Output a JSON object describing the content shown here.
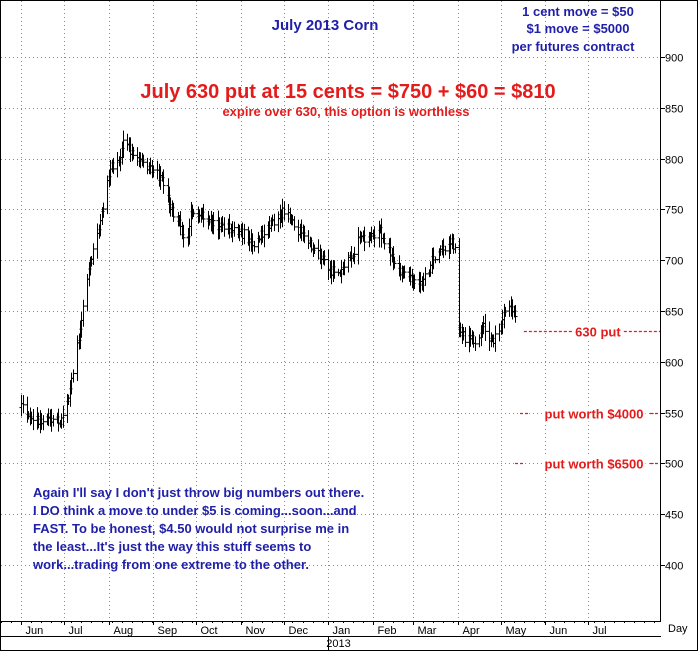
{
  "chart_data": {
    "type": "ohlc",
    "title": "July 2013 Corn",
    "contract_note": [
      "1 cent move = $50",
      "$1 move = $5000",
      "per futures contract"
    ],
    "headline": "July 630 put at 15 cents = $750 + $60 = $810",
    "subheadline": "expire over 630, this option is worthless",
    "y_ticks": [
      400,
      450,
      500,
      550,
      600,
      650,
      700,
      750,
      800,
      850,
      900
    ],
    "ylim": [
      345,
      955
    ],
    "x_months": [
      "Jun",
      "Jul",
      "Aug",
      "Sep",
      "Oct",
      "Nov",
      "Dec",
      "Jan",
      "Feb",
      "Mar",
      "Apr",
      "May",
      "Jun",
      "Jul"
    ],
    "x_month_days": [
      0,
      30,
      61,
      92,
      122,
      153,
      183,
      214,
      245,
      273,
      304,
      334,
      365,
      395
    ],
    "x_year_label": "2013",
    "x_year_day": 214,
    "x_unit_label": "Day",
    "xlim": [
      -14,
      445
    ],
    "price_path": [
      [
        0,
        555
      ],
      [
        8,
        540
      ],
      [
        20,
        545
      ],
      [
        28,
        540
      ],
      [
        35,
        580
      ],
      [
        42,
        640
      ],
      [
        48,
        700
      ],
      [
        55,
        740
      ],
      [
        62,
        790
      ],
      [
        68,
        800
      ],
      [
        72,
        820
      ],
      [
        78,
        800
      ],
      [
        85,
        795
      ],
      [
        92,
        790
      ],
      [
        98,
        780
      ],
      [
        105,
        748
      ],
      [
        110,
        740
      ],
      [
        115,
        705
      ],
      [
        118,
        750
      ],
      [
        125,
        745
      ],
      [
        135,
        735
      ],
      [
        145,
        732
      ],
      [
        155,
        725
      ],
      [
        160,
        715
      ],
      [
        170,
        730
      ],
      [
        180,
        745
      ],
      [
        185,
        750
      ],
      [
        190,
        735
      ],
      [
        198,
        720
      ],
      [
        208,
        705
      ],
      [
        215,
        690
      ],
      [
        222,
        685
      ],
      [
        228,
        698
      ],
      [
        235,
        718
      ],
      [
        242,
        722
      ],
      [
        250,
        728
      ],
      [
        256,
        710
      ],
      [
        262,
        690
      ],
      [
        272,
        680
      ],
      [
        280,
        678
      ],
      [
        286,
        700
      ],
      [
        292,
        710
      ],
      [
        298,
        718
      ],
      [
        304,
        712
      ],
      [
        305,
        630
      ],
      [
        310,
        622
      ],
      [
        318,
        622
      ],
      [
        322,
        635
      ],
      [
        328,
        620
      ],
      [
        332,
        625
      ],
      [
        336,
        648
      ],
      [
        340,
        658
      ],
      [
        346,
        640
      ]
    ],
    "reference_lines": [
      {
        "label": "630 put",
        "value": 630
      },
      {
        "label": "put worth $4000",
        "value": 550
      },
      {
        "label": "put worth $6500",
        "value": 500
      }
    ],
    "commentary": [
      "Again I'll say I don't just throw big numbers out there.",
      "I DO think a move to under $5 is coming...soon...and",
      "FAST. To be honest, $4.50 would not surprise me in",
      "the least...It's just the way this stuff seems to",
      "work...trading from one extreme to the other."
    ],
    "colors": {
      "text_blue": "#1f1fa8",
      "text_red": "#e41b1b",
      "bars": "#000000",
      "grid": "#8a8a8a"
    }
  }
}
